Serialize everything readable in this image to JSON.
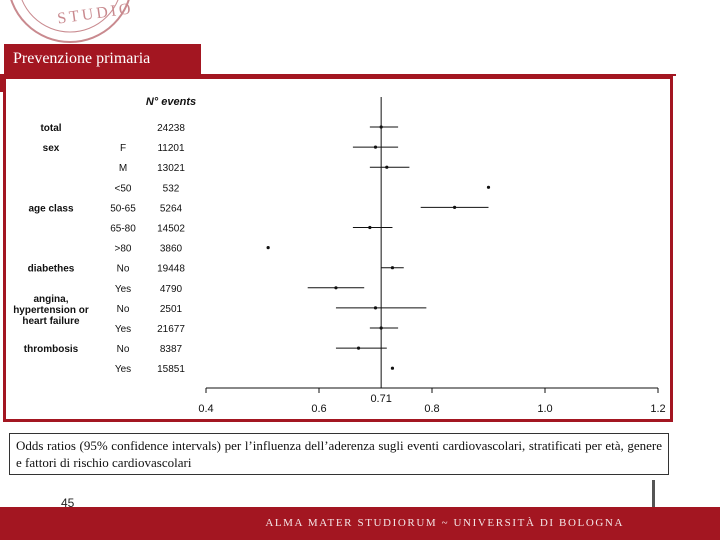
{
  "slide": {
    "title": "Prevenzione primaria",
    "caption": "Odds ratios (95% confidence intervals) per l’influenza dell’aderenza sugli eventi cardiovascolari, stratificati per età, genere e fattori di rischio cardiovascolari",
    "page_number": "45",
    "footer": "ALMA MATER STUDIORUM ~ UNIVERSITÀ DI BOLOGNA",
    "seal_text": "STUDIO",
    "accent_color": "#a31621"
  },
  "chart_data": {
    "type": "forest",
    "events_header": "N° events",
    "reference_line": 0.71,
    "reference_label": "0.71",
    "xlim": [
      0.4,
      1.2
    ],
    "x_ticks": [
      0.4,
      0.6,
      0.8,
      1.0,
      1.2
    ],
    "x_tick_labels": [
      "0.4",
      "0.6",
      "0.8",
      "1.0",
      "1.2"
    ],
    "rows": [
      {
        "group": "total",
        "sub": "",
        "events": "24238",
        "or": 0.71,
        "lo": 0.69,
        "hi": 0.74
      },
      {
        "group": "sex",
        "sub": "F",
        "events": "11201",
        "or": 0.7,
        "lo": 0.66,
        "hi": 0.74
      },
      {
        "group": "",
        "sub": "M",
        "events": "13021",
        "or": 0.72,
        "lo": 0.69,
        "hi": 0.76
      },
      {
        "group": "",
        "sub": "<50",
        "events": "532",
        "or": 0.9,
        "lo": 0.9,
        "hi": 0.9
      },
      {
        "group": "age class",
        "sub": "50-65",
        "events": "5264",
        "or": 0.84,
        "lo": 0.78,
        "hi": 0.9
      },
      {
        "group": "",
        "sub": "65-80",
        "events": "14502",
        "or": 0.69,
        "lo": 0.66,
        "hi": 0.73
      },
      {
        "group": "",
        "sub": ">80",
        "events": "3860",
        "or": 0.51,
        "lo": 0.51,
        "hi": 0.51
      },
      {
        "group": "diabethes",
        "sub": "No",
        "events": "19448",
        "or": 0.73,
        "lo": 0.71,
        "hi": 0.75
      },
      {
        "group": "",
        "sub": "Yes",
        "events": "4790",
        "or": 0.63,
        "lo": 0.58,
        "hi": 0.68
      },
      {
        "group": "angina, hypertension or heart failure",
        "sub": "No",
        "events": "2501",
        "or": 0.7,
        "lo": 0.63,
        "hi": 0.79
      },
      {
        "group": "",
        "sub": "Yes",
        "events": "21677",
        "or": 0.71,
        "lo": 0.69,
        "hi": 0.74
      },
      {
        "group": "thrombosis",
        "sub": "No",
        "events": "8387",
        "or": 0.67,
        "lo": 0.63,
        "hi": 0.72
      },
      {
        "group": "",
        "sub": "Yes",
        "events": "15851",
        "or": 0.73,
        "lo": 0.73,
        "hi": 0.73
      }
    ]
  }
}
